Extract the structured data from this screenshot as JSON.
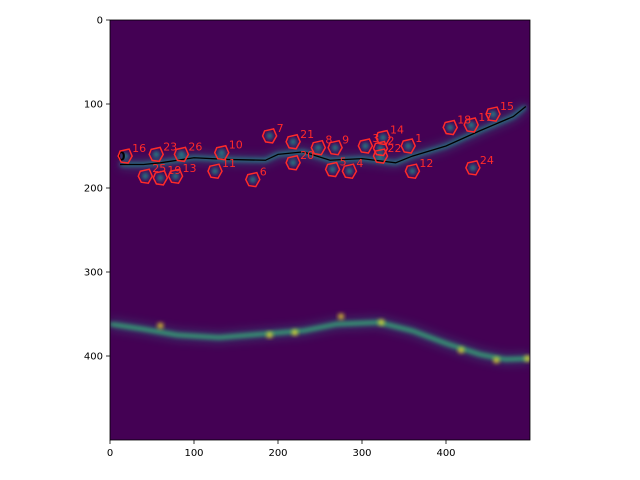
{
  "figure": {
    "image": {
      "colormap": "viridis",
      "background_color": "#440154",
      "bright_color": "#fde725",
      "mid_color": "#21918c"
    },
    "axes": {
      "xlim": [
        0,
        500
      ],
      "ylim": [
        500,
        0
      ],
      "x_ticks": [
        0,
        100,
        200,
        300,
        400
      ],
      "y_ticks": [
        0,
        100,
        200,
        300,
        400
      ],
      "x_tick_labels": [
        "0",
        "100",
        "200",
        "300",
        "400"
      ],
      "y_tick_labels": [
        "0",
        "100",
        "200",
        "300",
        "400"
      ]
    },
    "trace": {
      "color": "#000000",
      "start_label": "0",
      "points": [
        [
          12,
          172
        ],
        [
          40,
          172
        ],
        [
          60,
          170
        ],
        [
          100,
          164
        ],
        [
          140,
          166
        ],
        [
          185,
          167
        ],
        [
          200,
          160
        ],
        [
          230,
          157
        ],
        [
          262,
          167
        ],
        [
          300,
          165
        ],
        [
          340,
          170
        ],
        [
          360,
          162
        ],
        [
          400,
          150
        ],
        [
          440,
          132
        ],
        [
          480,
          115
        ],
        [
          495,
          103
        ]
      ]
    },
    "roi_color": "#ff2a2a",
    "rois": [
      {
        "label": "1",
        "x": 355,
        "y": 150
      },
      {
        "label": "2",
        "x": 322,
        "y": 153
      },
      {
        "label": "3",
        "x": 304,
        "y": 150
      },
      {
        "label": "4",
        "x": 285,
        "y": 180
      },
      {
        "label": "5",
        "x": 265,
        "y": 178
      },
      {
        "label": "6",
        "x": 170,
        "y": 190
      },
      {
        "label": "7",
        "x": 190,
        "y": 138
      },
      {
        "label": "8",
        "x": 248,
        "y": 152
      },
      {
        "label": "9",
        "x": 268,
        "y": 152
      },
      {
        "label": "10",
        "x": 133,
        "y": 158
      },
      {
        "label": "11",
        "x": 125,
        "y": 180
      },
      {
        "label": "12",
        "x": 360,
        "y": 180
      },
      {
        "label": "13",
        "x": 78,
        "y": 186
      },
      {
        "label": "14",
        "x": 325,
        "y": 140
      },
      {
        "label": "15",
        "x": 456,
        "y": 112
      },
      {
        "label": "16",
        "x": 18,
        "y": 162
      },
      {
        "label": "17",
        "x": 430,
        "y": 125
      },
      {
        "label": "18",
        "x": 405,
        "y": 128
      },
      {
        "label": "19",
        "x": 60,
        "y": 188
      },
      {
        "label": "20",
        "x": 218,
        "y": 170
      },
      {
        "label": "21",
        "x": 218,
        "y": 145
      },
      {
        "label": "22",
        "x": 322,
        "y": 162
      },
      {
        "label": "23",
        "x": 55,
        "y": 160
      },
      {
        "label": "24",
        "x": 432,
        "y": 176
      },
      {
        "label": "25",
        "x": 42,
        "y": 186
      },
      {
        "label": "26",
        "x": 85,
        "y": 160
      }
    ]
  }
}
